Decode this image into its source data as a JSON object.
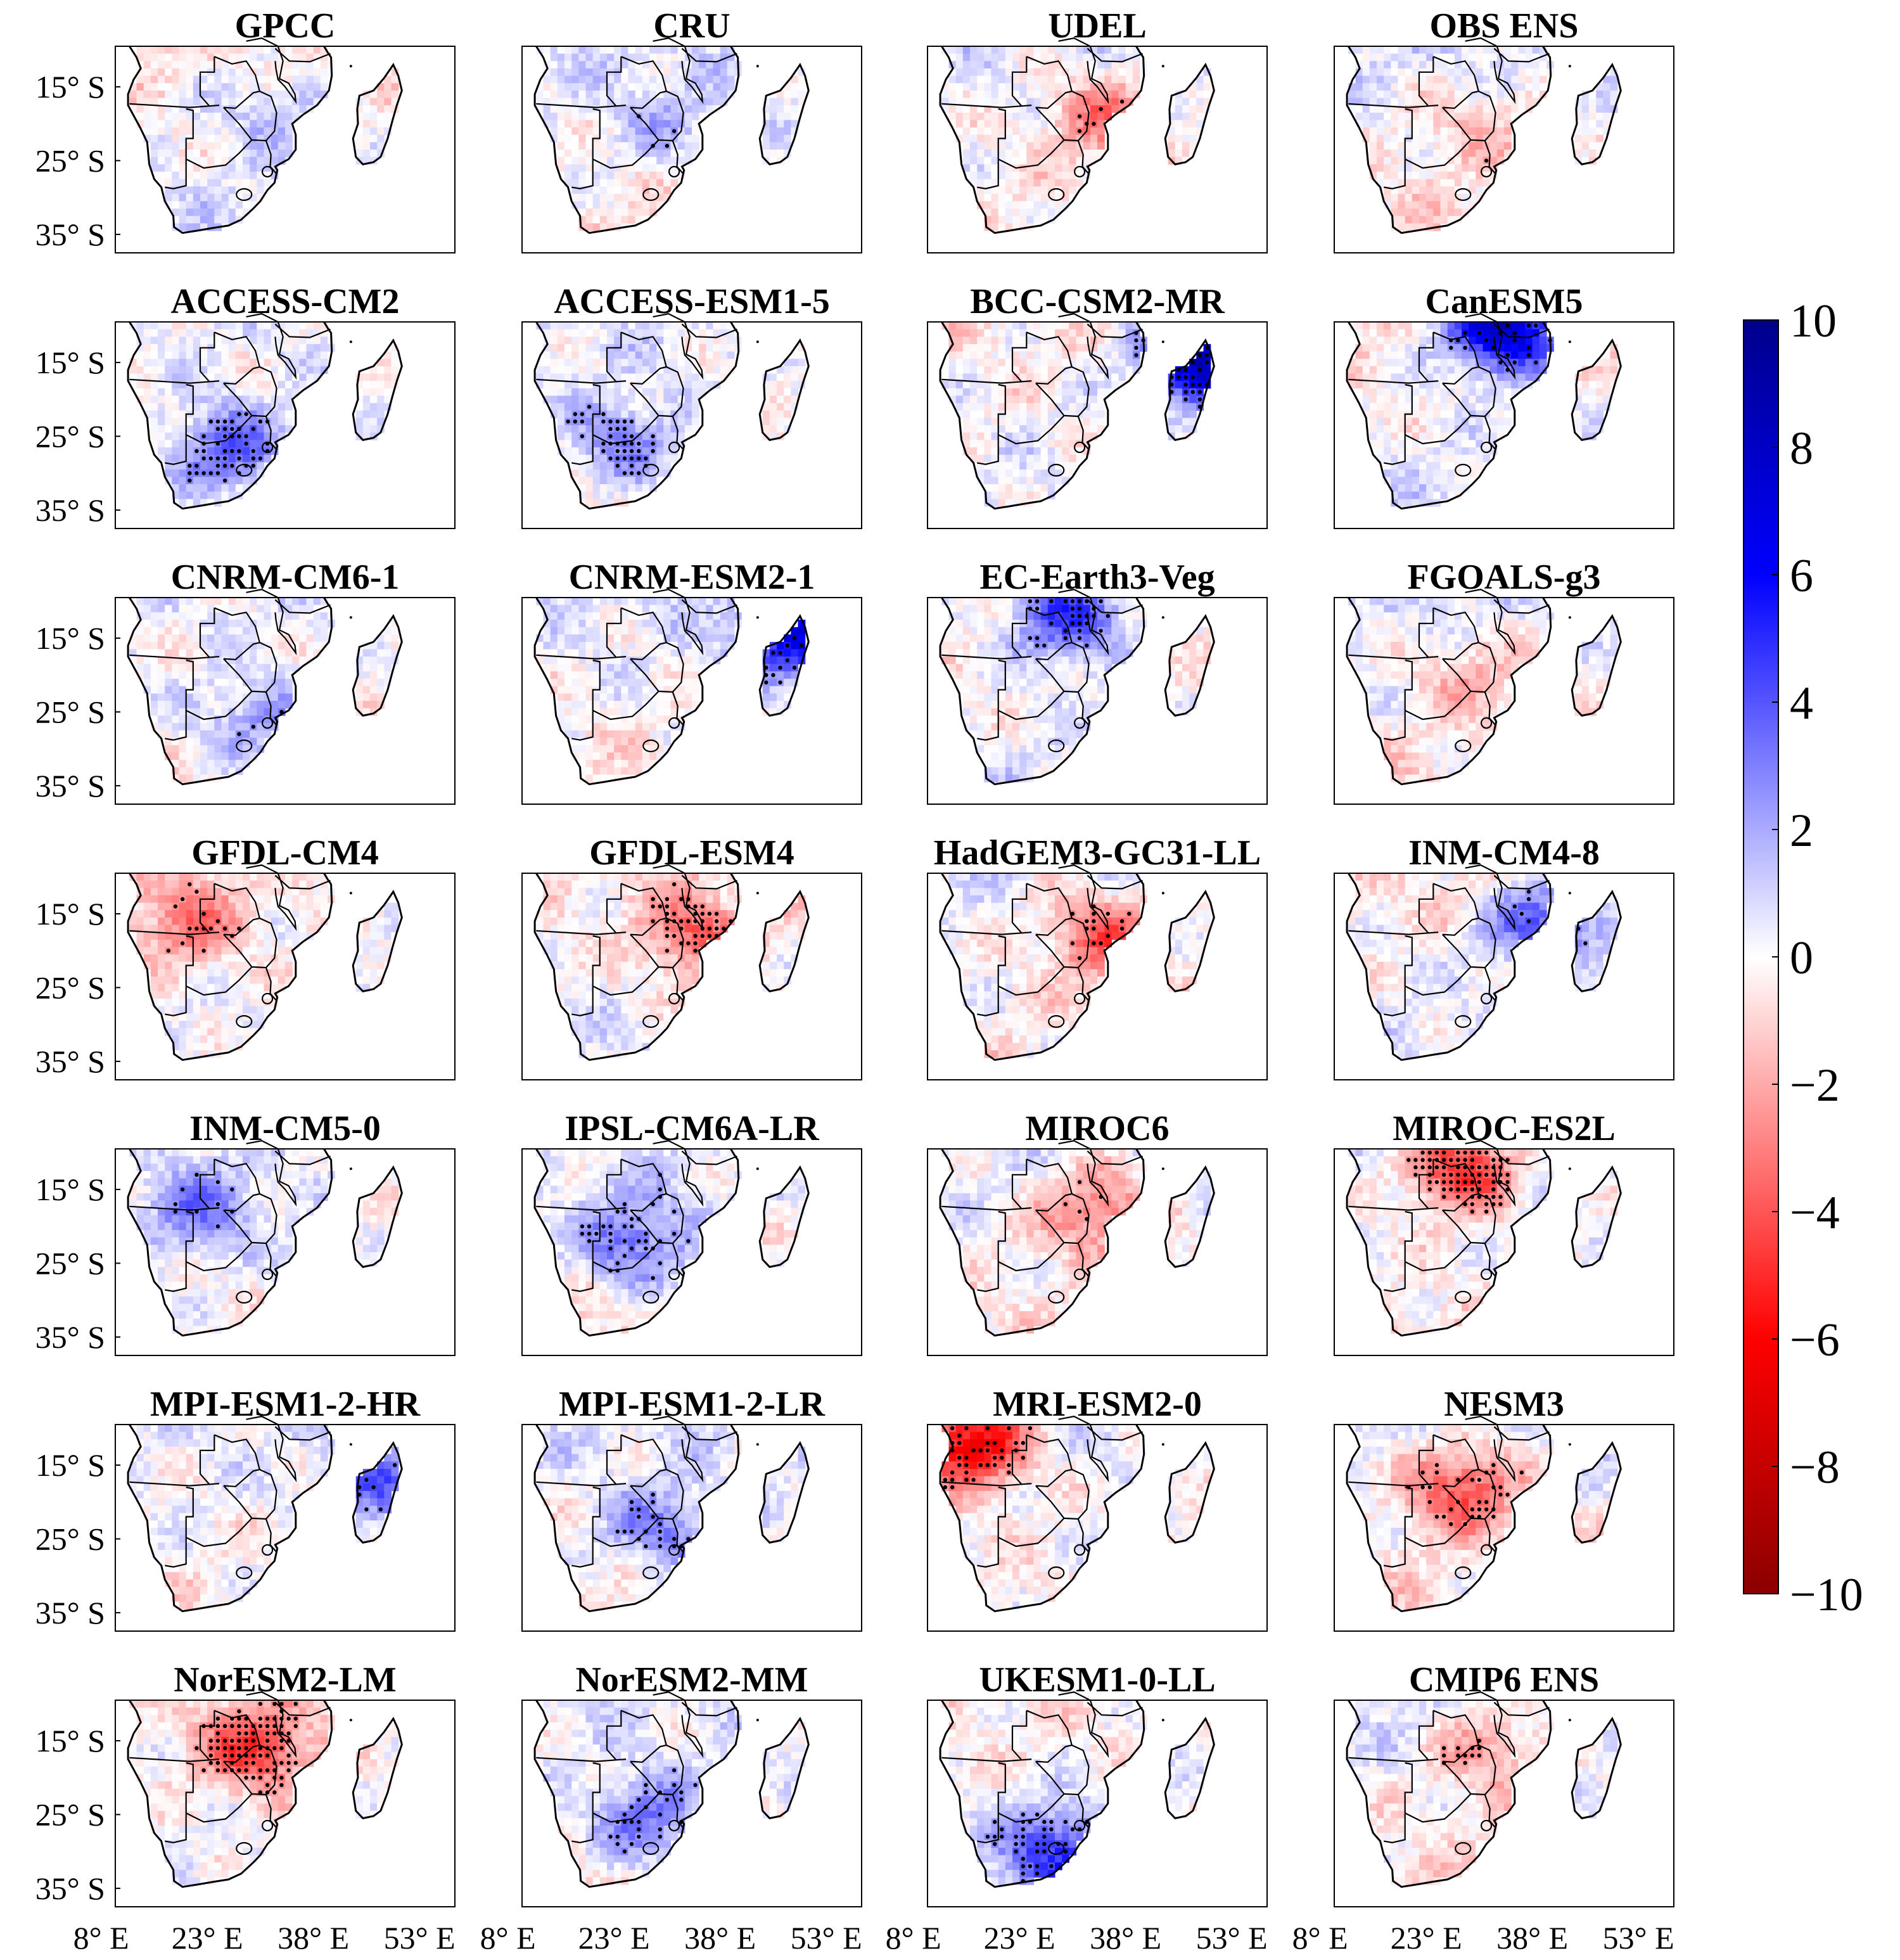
{
  "chart_data": {
    "type": "heatmap",
    "layout": {
      "rows": 7,
      "cols": 4
    },
    "region": "Southern Africa",
    "panels": [
      {
        "title": "GPCC",
        "lat": -18,
        "lon": 32,
        "amp": 1.6,
        "style": 0,
        "stipple": 0.1
      },
      {
        "title": "CRU",
        "lat": -20,
        "lon": 30,
        "amp": 1.4,
        "style": 1,
        "stipple": 0.06
      },
      {
        "title": "UDEL",
        "lat": -19,
        "lon": 35,
        "amp": -3.0,
        "style": 2,
        "stipple": 0.1
      },
      {
        "title": "OBS ENS",
        "lat": -20,
        "lon": 30,
        "amp": -1.5,
        "style": 0,
        "stipple": 0.08
      },
      {
        "title": "ACCESS-CM2",
        "lat": -27,
        "lon": 26,
        "amp": 4.0,
        "style": 3,
        "stipple": 0.2
      },
      {
        "title": "ACCESS-ESM1-5",
        "lat": -26,
        "lon": 24,
        "amp": 3.0,
        "style": 1,
        "stipple": 0.25
      },
      {
        "title": "BCC-CSM2-MR",
        "lat": -14,
        "lon": 49,
        "amp": 9.0,
        "style": 2,
        "stipple": 0.25
      },
      {
        "title": "CanESM5",
        "lat": -10,
        "lon": 34,
        "amp": 9.0,
        "style": 0,
        "stipple": 0.12
      },
      {
        "title": "CNRM-CM6-1",
        "lat": -26,
        "lon": 30,
        "amp": 2.4,
        "style": 3,
        "stipple": 0.06
      },
      {
        "title": "CNRM-ESM2-1",
        "lat": -15,
        "lon": 49,
        "amp": 6.0,
        "style": 1,
        "stipple": 0.1
      },
      {
        "title": "EC-Earth3-Veg",
        "lat": -12,
        "lon": 30,
        "amp": 5.0,
        "style": 2,
        "stipple": 0.1
      },
      {
        "title": "FGOALS-g3",
        "lat": -20,
        "lon": 30,
        "amp": -1.8,
        "style": 0,
        "stipple": 0.02
      },
      {
        "title": "GFDL-CM4",
        "lat": -16,
        "lon": 20,
        "amp": -3.0,
        "style": 3,
        "stipple": 0.06
      },
      {
        "title": "GFDL-ESM4",
        "lat": -18,
        "lon": 35,
        "amp": -3.5,
        "style": 1,
        "stipple": 0.2
      },
      {
        "title": "HadGEM3-GC31-LL",
        "lat": -18,
        "lon": 35,
        "amp": -4.0,
        "style": 2,
        "stipple": 0.12
      },
      {
        "title": "INM-CM4-8",
        "lat": -16,
        "lon": 40,
        "amp": 4.5,
        "style": 0,
        "stipple": 0.06
      },
      {
        "title": "INM-CM5-0",
        "lat": -18,
        "lon": 22,
        "amp": 3.0,
        "style": 3,
        "stipple": 0.06
      },
      {
        "title": "IPSL-CM6A-LR",
        "lat": -22,
        "lon": 26,
        "amp": 3.5,
        "style": 1,
        "stipple": 0.18
      },
      {
        "title": "MIROC6",
        "lat": -18,
        "lon": 34,
        "amp": -3.5,
        "style": 2,
        "stipple": 0.04
      },
      {
        "title": "MIROC-ES2L",
        "lat": -12,
        "lon": 28,
        "amp": -5.5,
        "style": 0,
        "stipple": 0.3
      },
      {
        "title": "MPI-ESM1-2-HR",
        "lat": -18,
        "lon": 48,
        "amp": 3.5,
        "style": 3,
        "stipple": 0.05
      },
      {
        "title": "MPI-ESM1-2-LR",
        "lat": -24,
        "lon": 30,
        "amp": 3.0,
        "style": 1,
        "stipple": 0.15
      },
      {
        "title": "MRI-ESM2-0",
        "lat": -12,
        "lon": 16,
        "amp": -7.0,
        "style": 2,
        "stipple": 0.12
      },
      {
        "title": "NESM3",
        "lat": -18,
        "lon": 28,
        "amp": -4.5,
        "style": 0,
        "stipple": 0.1
      },
      {
        "title": "NorESM2-LM",
        "lat": -16,
        "lon": 30,
        "amp": -4.5,
        "style": 3,
        "stipple": 0.25
      },
      {
        "title": "NorESM2-MM",
        "lat": -26,
        "lon": 28,
        "amp": 3.5,
        "style": 1,
        "stipple": 0.15
      },
      {
        "title": "UKESM1-0-LL",
        "lat": -30,
        "lon": 28,
        "amp": 4.5,
        "style": 2,
        "stipple": 0.15
      },
      {
        "title": "CMIP6 ENS",
        "lat": -16,
        "lon": 32,
        "amp": -2.5,
        "style": 0,
        "stipple": 0.28
      }
    ],
    "y_ticks": [
      "15° S",
      "25° S",
      "35° S"
    ],
    "y_tick_values": [
      -15,
      -25,
      -35
    ],
    "x_ticks": [
      "8° E",
      "23° E",
      "38° E",
      "53° E"
    ],
    "x_tick_values": [
      8,
      23,
      38,
      53
    ],
    "colorbar": {
      "range": [
        -10,
        10
      ],
      "ticks": [
        "10",
        "8",
        "6",
        "4",
        "2",
        "0",
        "−2",
        "−4",
        "−6",
        "−8",
        "−10"
      ],
      "tick_values": [
        10,
        8,
        6,
        4,
        2,
        0,
        -2,
        -4,
        -6,
        -8,
        -10
      ],
      "colors": {
        "max": "#00008b",
        "mid_pos": "#0000ff",
        "zero": "#ffffff",
        "mid_neg": "#ff0000",
        "min": "#8b0000"
      }
    }
  }
}
